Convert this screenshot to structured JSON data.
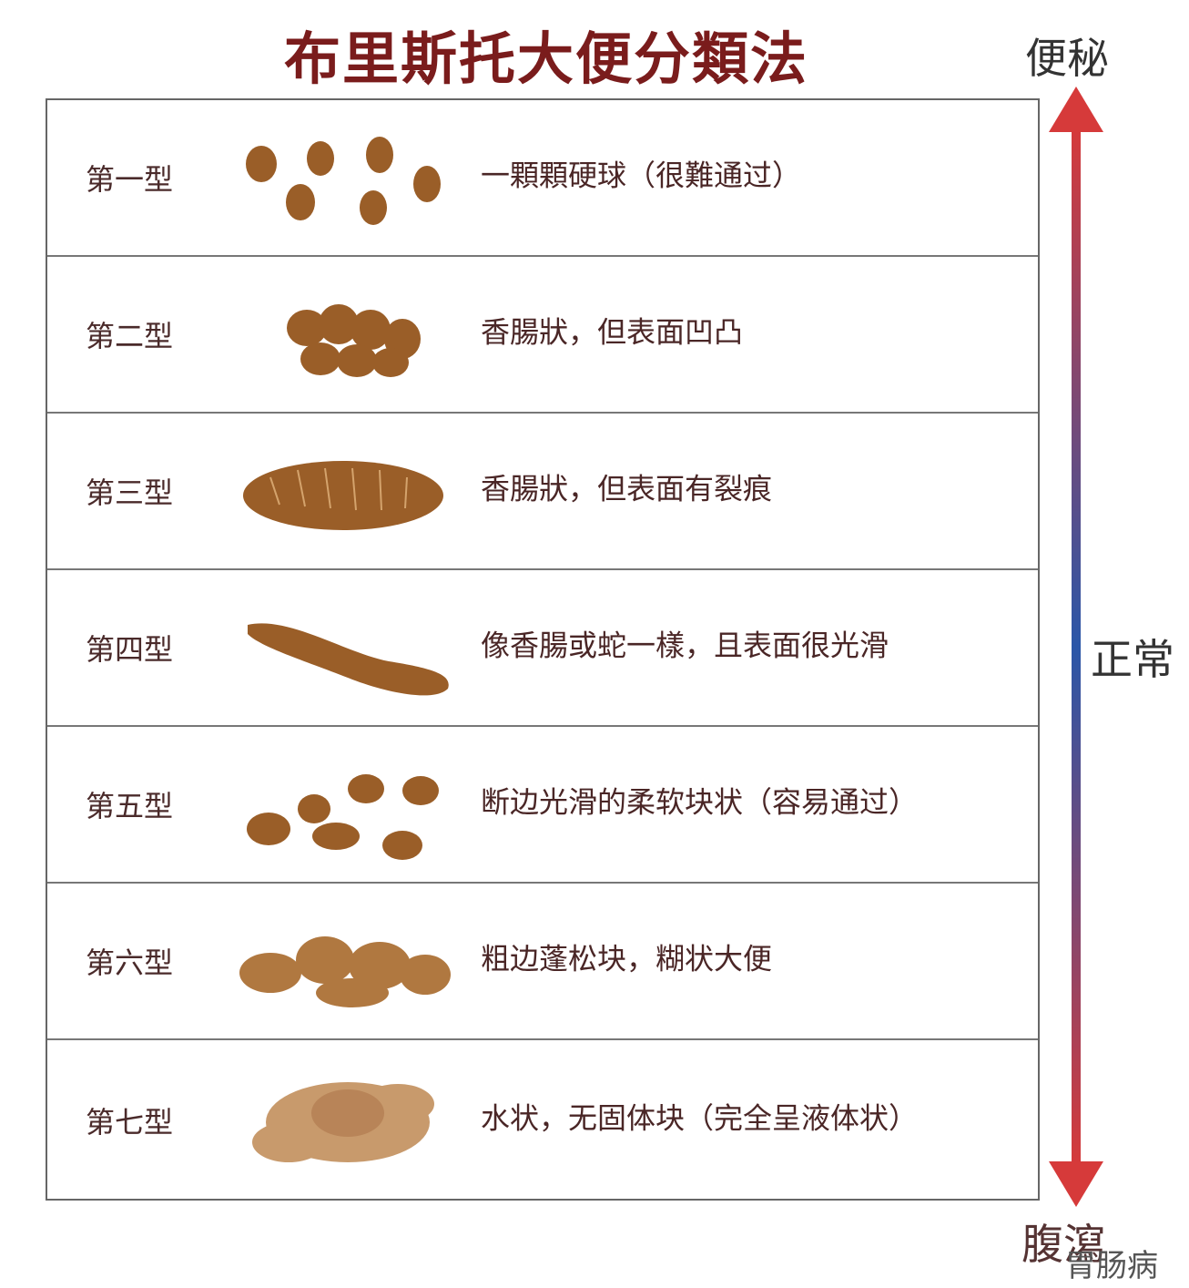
{
  "title": "布里斯托大便分類法",
  "scale": {
    "top": "便秘",
    "middle": "正常",
    "bottom": "腹瀉"
  },
  "colors": {
    "title": "#7a1c1c",
    "arrow_end": "#d63a3a",
    "arrow_mid": "#2a56a8",
    "stool": "#a3652c"
  },
  "rows": [
    {
      "label": "第一型",
      "desc": "一顆顆硬球（很難通过）"
    },
    {
      "label": "第二型",
      "desc": "香腸狀，但表面凹凸"
    },
    {
      "label": "第三型",
      "desc": "香腸狀，但表面有裂痕"
    },
    {
      "label": "第四型",
      "desc": "像香腸或蛇一樣，且表面很光滑"
    },
    {
      "label": "第五型",
      "desc": "断边光滑的柔软块状（容易通过）"
    },
    {
      "label": "第六型",
      "desc": "粗边蓬松块，糊状大便"
    },
    {
      "label": "第七型",
      "desc": "水状，无固体块（完全呈液体状）"
    }
  ],
  "watermark": "胃肠病"
}
